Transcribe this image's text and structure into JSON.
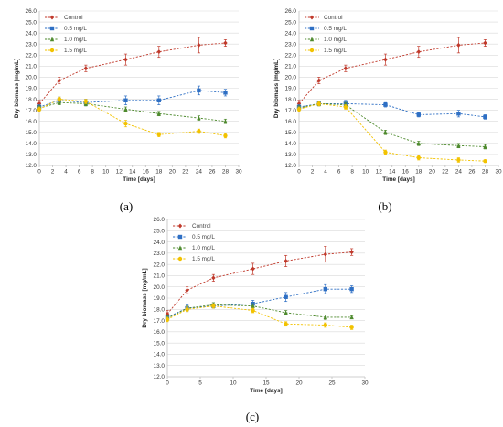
{
  "colors": {
    "Control": "#c0392b",
    "0.5 mg/L": "#2e6fc4",
    "1.0 mg/L": "#4e8a2e",
    "1.5 mg/L": "#f2c200"
  },
  "chart_data": [
    {
      "type": "line",
      "panel_label": "(a)",
      "xlabel": "Time [days]",
      "ylabel": "Dry biomass [mg/mL]",
      "xlim": [
        0,
        30
      ],
      "ylim": [
        12.0,
        26.0
      ],
      "xticks": [
        0,
        2,
        4,
        6,
        8,
        10,
        12,
        14,
        16,
        18,
        20,
        22,
        24,
        26,
        28,
        30
      ],
      "yticks": [
        12.0,
        13.0,
        14.0,
        15.0,
        16.0,
        17.0,
        18.0,
        19.0,
        20.0,
        21.0,
        22.0,
        23.0,
        24.0,
        25.0,
        26.0
      ],
      "grid": "horizontal",
      "legend": "top-left",
      "x": [
        0,
        3,
        7,
        13,
        18,
        24,
        28
      ],
      "series": [
        {
          "name": "Control",
          "values": [
            17.6,
            19.7,
            20.8,
            21.6,
            22.3,
            22.9,
            23.1
          ],
          "err": [
            0.3,
            0.3,
            0.3,
            0.5,
            0.5,
            0.7,
            0.3
          ]
        },
        {
          "name": "0.5 mg/L",
          "values": [
            17.3,
            17.9,
            17.7,
            17.9,
            17.9,
            18.8,
            18.6
          ],
          "err": [
            0.2,
            0.3,
            0.3,
            0.4,
            0.4,
            0.4,
            0.3
          ]
        },
        {
          "name": "1.0 mg/L",
          "values": [
            17.2,
            17.7,
            17.6,
            17.1,
            16.7,
            16.3,
            16.0
          ],
          "err": [
            0.2,
            0.2,
            0.2,
            0.2,
            0.2,
            0.2,
            0.2
          ]
        },
        {
          "name": "1.5 mg/L",
          "values": [
            17.1,
            18.0,
            17.8,
            15.8,
            14.8,
            15.1,
            14.7
          ],
          "err": [
            0.2,
            0.2,
            0.2,
            0.3,
            0.2,
            0.2,
            0.2
          ]
        }
      ]
    },
    {
      "type": "line",
      "panel_label": "(b)",
      "xlabel": "Time [days]",
      "ylabel": "Dry biomass [mg/mL]",
      "xlim": [
        0,
        30
      ],
      "ylim": [
        12.0,
        26.0
      ],
      "xticks": [
        0,
        2,
        4,
        6,
        8,
        10,
        12,
        14,
        16,
        18,
        20,
        22,
        24,
        26,
        28,
        30
      ],
      "yticks": [
        12.0,
        13.0,
        14.0,
        15.0,
        16.0,
        17.0,
        18.0,
        19.0,
        20.0,
        21.0,
        22.0,
        23.0,
        24.0,
        25.0,
        26.0
      ],
      "grid": "horizontal",
      "legend": "top-left",
      "x": [
        0,
        3,
        7,
        13,
        18,
        24,
        28
      ],
      "series": [
        {
          "name": "Control",
          "values": [
            17.6,
            19.7,
            20.8,
            21.6,
            22.3,
            22.9,
            23.1
          ],
          "err": [
            0.3,
            0.3,
            0.3,
            0.5,
            0.5,
            0.7,
            0.3
          ]
        },
        {
          "name": "0.5 mg/L",
          "values": [
            17.3,
            17.6,
            17.6,
            17.5,
            16.6,
            16.7,
            16.4
          ],
          "err": [
            0.2,
            0.2,
            0.3,
            0.2,
            0.2,
            0.3,
            0.2
          ]
        },
        {
          "name": "1.0 mg/L",
          "values": [
            17.2,
            17.6,
            17.5,
            15.0,
            14.0,
            13.8,
            13.7
          ],
          "err": [
            0.2,
            0.2,
            0.2,
            0.2,
            0.2,
            0.2,
            0.2
          ]
        },
        {
          "name": "1.5 mg/L",
          "values": [
            17.1,
            17.6,
            17.3,
            13.2,
            12.7,
            12.5,
            12.4
          ],
          "err": [
            0.2,
            0.2,
            0.2,
            0.2,
            0.2,
            0.2,
            0.1
          ]
        }
      ]
    },
    {
      "type": "line",
      "panel_label": "(c)",
      "xlabel": "Time [days]",
      "ylabel": "Dry biomass [mg/mL]",
      "xlim": [
        0,
        30
      ],
      "ylim": [
        12.0,
        26.0
      ],
      "xticks": [
        0,
        5,
        10,
        15,
        20,
        25,
        30
      ],
      "yticks": [
        12.0,
        13.0,
        14.0,
        15.0,
        16.0,
        17.0,
        18.0,
        19.0,
        20.0,
        21.0,
        22.0,
        23.0,
        24.0,
        25.0,
        26.0
      ],
      "grid": "horizontal",
      "legend": "top-left",
      "x": [
        0,
        3,
        7,
        13,
        18,
        24,
        28
      ],
      "series": [
        {
          "name": "Control",
          "values": [
            17.6,
            19.7,
            20.8,
            21.6,
            22.3,
            22.9,
            23.1
          ],
          "err": [
            0.3,
            0.3,
            0.3,
            0.5,
            0.5,
            0.7,
            0.3
          ]
        },
        {
          "name": "0.5 mg/L",
          "values": [
            17.3,
            18.1,
            18.3,
            18.5,
            19.1,
            19.8,
            19.8
          ],
          "err": [
            0.2,
            0.3,
            0.2,
            0.3,
            0.4,
            0.4,
            0.3
          ]
        },
        {
          "name": "1.0 mg/L",
          "values": [
            17.2,
            18.1,
            18.4,
            18.3,
            17.7,
            17.3,
            17.3
          ],
          "err": [
            0.2,
            0.2,
            0.2,
            0.2,
            0.2,
            0.2,
            0.1
          ]
        },
        {
          "name": "1.5 mg/L",
          "values": [
            17.1,
            18.0,
            18.3,
            17.9,
            16.7,
            16.6,
            16.4
          ],
          "err": [
            0.2,
            0.2,
            0.2,
            0.2,
            0.2,
            0.2,
            0.2
          ]
        }
      ]
    }
  ]
}
